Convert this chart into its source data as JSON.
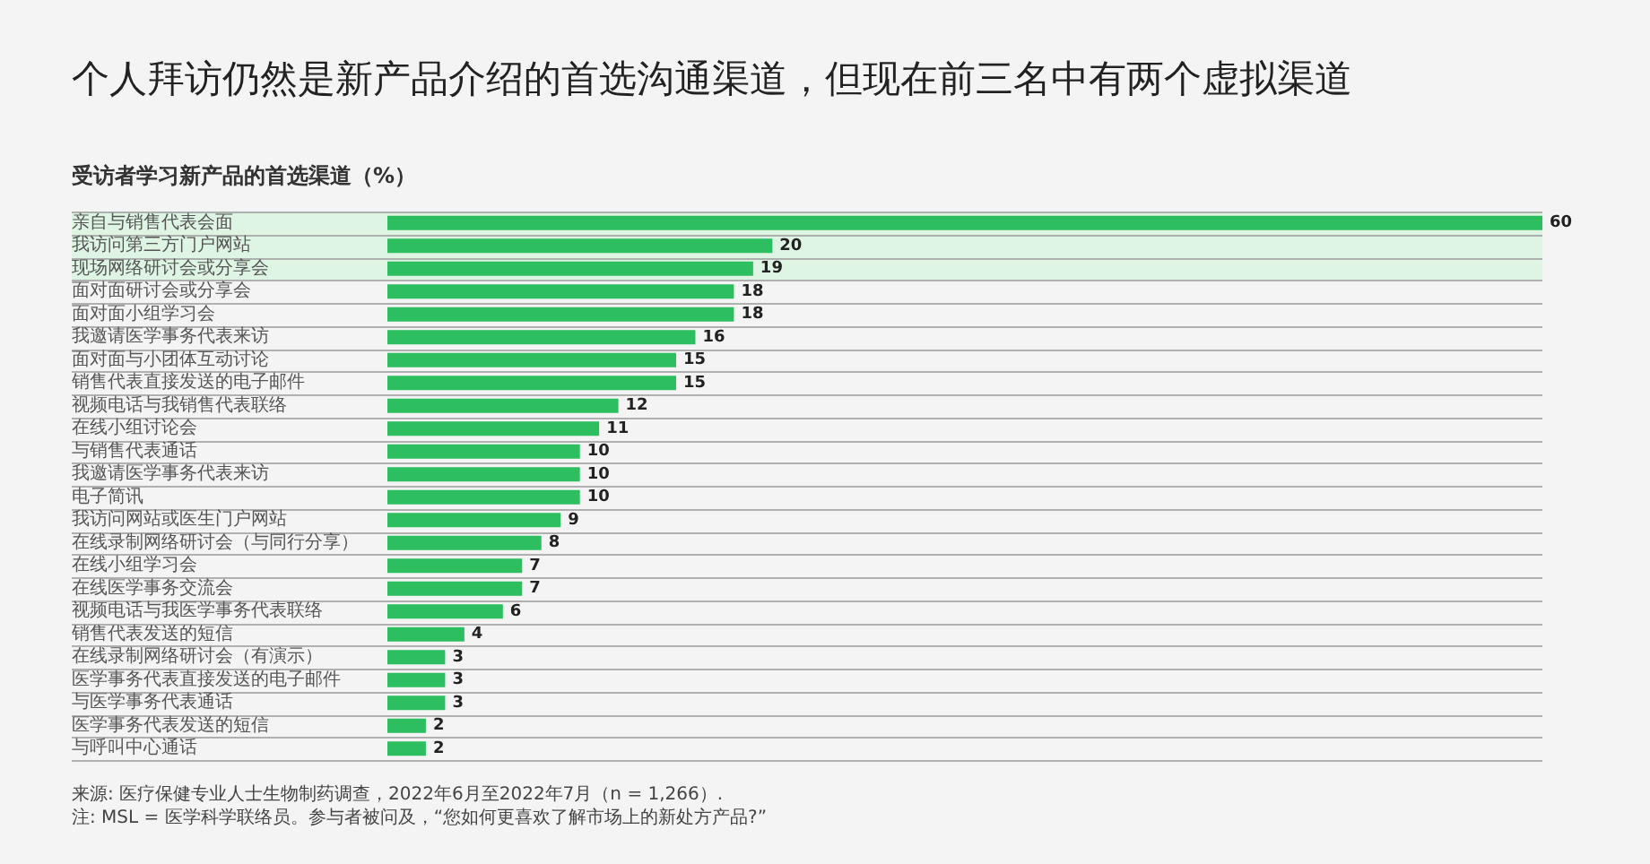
{
  "chart_data": {
    "type": "bar",
    "orientation": "horizontal",
    "title": "个人拜访仍然是新产品介绍的首选沟通渠道，但现在前三名中有两个虚拟渠道",
    "subtitle": "受访者学习新产品的首选渠道（%）",
    "categories": [
      "亲自与销售代表会面",
      "我访问第三方门户网站",
      "现场网络研讨会或分享会",
      "面对面研讨会或分享会",
      "面对面小组学习会",
      "我邀请医学事务代表来访",
      "面对面与小团体互动讨论",
      "销售代表直接发送的电子邮件",
      "视频电话与我销售代表联络",
      "在线小组讨论会",
      "与销售代表通话",
      "我邀请医学事务代表来访",
      "电子简讯",
      "我访问网站或医生门户网站",
      "在线录制网络研讨会（与同行分享）",
      "在线小组学习会",
      "在线医学事务交流会",
      "视频电话与我医学事务代表联络",
      "销售代表发送的短信",
      "在线录制网络研讨会（有演示）",
      "医学事务代表直接发送的电子邮件",
      "与医学事务代表通话",
      "医学事务代表发送的短信",
      "与呼叫中心通话"
    ],
    "values": [
      60,
      20,
      19,
      18,
      18,
      16,
      15,
      15,
      12,
      11,
      10,
      10,
      10,
      9,
      8,
      7,
      7,
      6,
      4,
      3,
      3,
      3,
      2,
      2
    ],
    "color": "#2dbe60",
    "xlim": [
      0,
      60
    ],
    "tick_labels": "y",
    "data_labels": true,
    "grid": "y",
    "legend": false,
    "bands": [
      {
        "axis": "y",
        "from": "亲自与销售代表会面",
        "to": "现场网络研讨会或分享会",
        "color": "#dff5e3"
      }
    ],
    "annotations": [
      "来源: 医疗保健专业人士生物制药调查，2022年6月至2022年7月（n = 1,266）.",
      "注: MSL = 医学科学联络员。参与者被问及，“您如何更喜欢了解市场上的新处方产品?”"
    ]
  }
}
